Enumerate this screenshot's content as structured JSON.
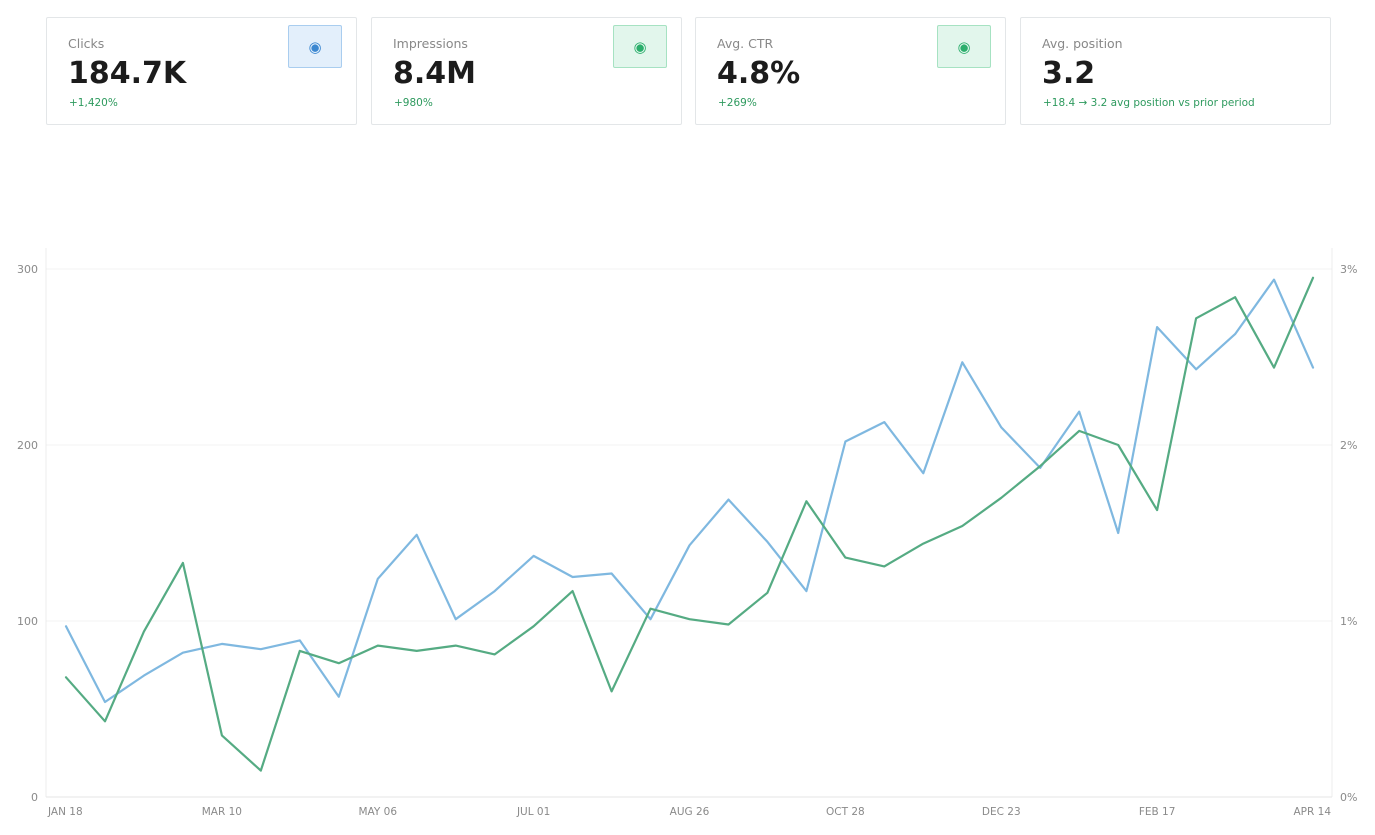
{
  "metrics": [
    {
      "label": "Clicks",
      "value": "184.7K",
      "delta": "+1,420%",
      "toggle_icon": "radio-selected-icon",
      "toggle_glyph": "◉",
      "accent": "#3b87d0"
    },
    {
      "label": "Impressions",
      "value": "8.4M",
      "delta": "+980%",
      "toggle_icon": "radio-selected-icon",
      "toggle_glyph": "◉",
      "accent": "#2bae6c"
    },
    {
      "label": "Avg. CTR",
      "value": "4.8%",
      "delta": "+269%",
      "toggle_icon": "radio-selected-icon",
      "toggle_glyph": "◉",
      "accent": "#2bae6c"
    },
    {
      "label": "Avg. position",
      "value": "3.2",
      "delta": "+18.4 → 3.2 avg position vs prior period"
    }
  ],
  "chart_data": {
    "type": "line",
    "x_tick_labels": [
      "JAN 18",
      "MAR 10",
      "MAY 06",
      "JUL 01",
      "AUG 26",
      "OCT 28",
      "DEC 23",
      "FEB 17",
      "APR 14"
    ],
    "y_left": {
      "ticks": [
        "0",
        "100",
        "200",
        "300"
      ],
      "range": [
        0,
        300
      ]
    },
    "y_right": {
      "ticks": [
        "0%",
        "1%",
        "2%",
        "3%"
      ],
      "range": [
        0,
        3
      ]
    },
    "grid": true,
    "series": [
      {
        "axis": "left",
        "color": "#7fb8e0",
        "values": [
          97,
          54,
          69,
          82,
          87,
          84,
          89,
          57,
          124,
          149,
          101,
          117,
          137,
          125,
          127,
          101,
          143,
          169,
          145,
          117,
          202,
          213,
          184,
          247,
          210,
          187,
          219,
          150,
          267,
          243,
          263,
          294,
          244
        ]
      },
      {
        "axis": "right",
        "color": "#55ab83",
        "values": [
          0.68,
          0.43,
          0.94,
          1.33,
          0.35,
          0.15,
          0.83,
          0.76,
          0.86,
          0.83,
          0.86,
          0.81,
          0.97,
          1.17,
          0.6,
          1.07,
          1.01,
          0.98,
          1.16,
          1.68,
          1.36,
          1.31,
          1.44,
          1.54,
          1.7,
          1.88,
          2.08,
          2.0,
          1.63,
          2.72,
          2.84,
          2.44,
          2.95
        ]
      }
    ]
  }
}
